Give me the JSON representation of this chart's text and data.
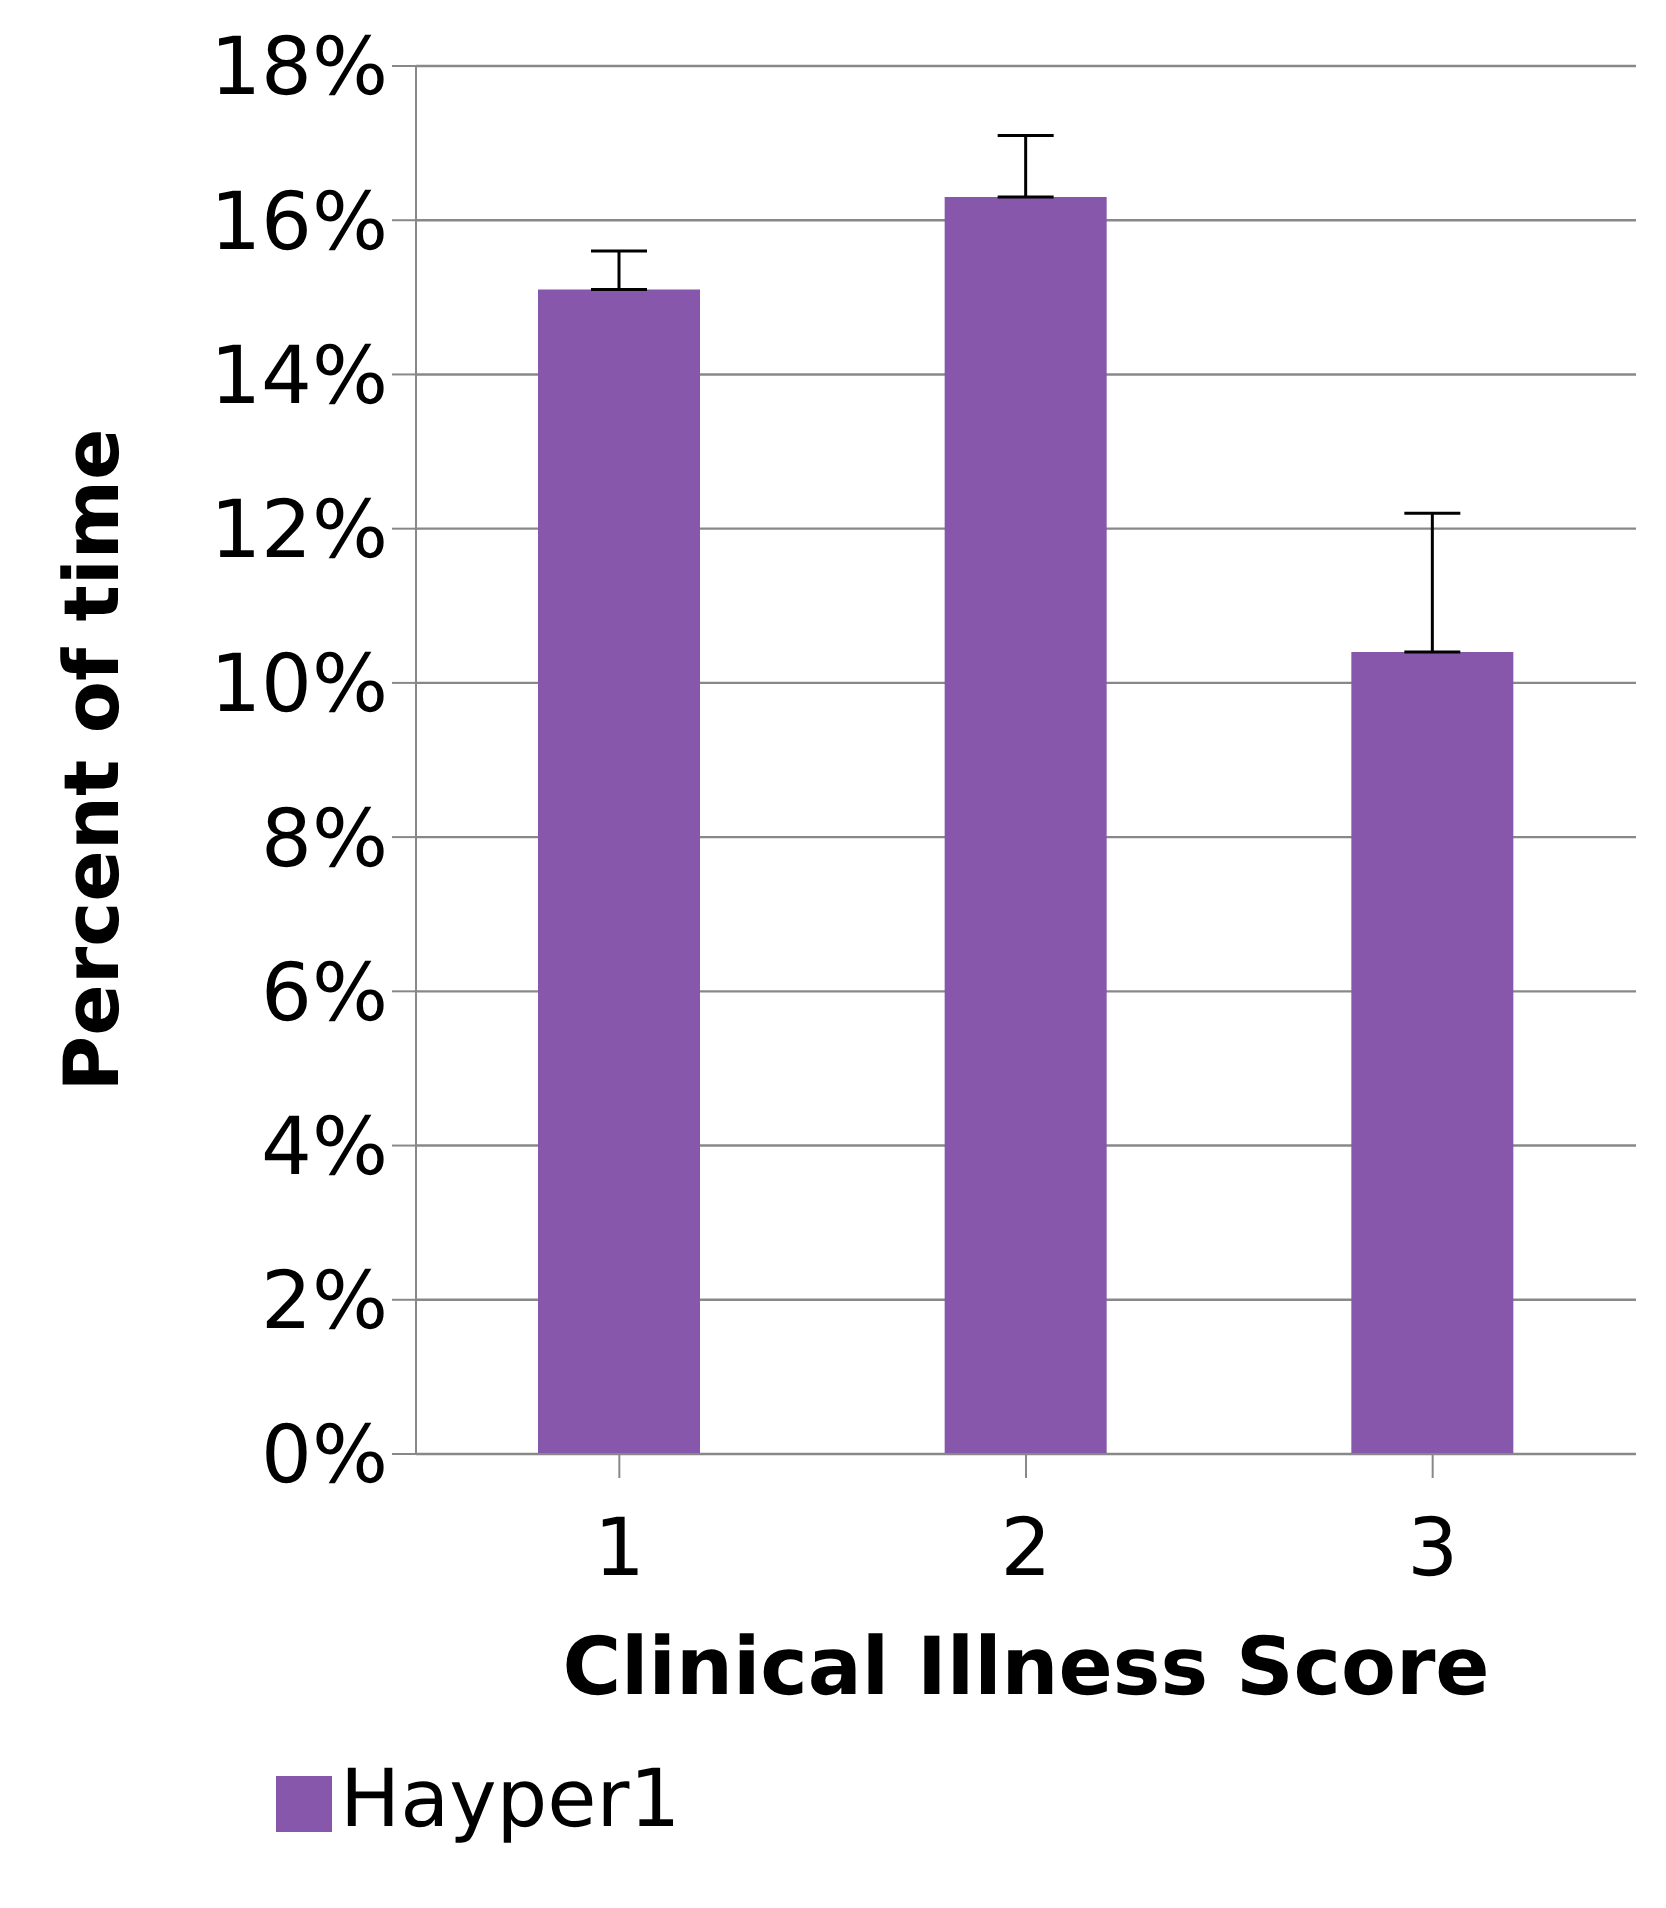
{
  "chart_data": {
    "type": "bar",
    "xlabel": "Clinical Illness Score",
    "ylabel": "Percent of time",
    "categories": [
      "1",
      "2",
      "3"
    ],
    "series": [
      {
        "name": "Hayper1",
        "color": "#8757ab",
        "values": [
          15.1,
          16.3,
          10.4
        ],
        "errors": [
          [
            15.1,
            15.6
          ],
          [
            16.3,
            17.1
          ],
          [
            10.4,
            12.2
          ]
        ]
      }
    ],
    "ylim": [
      0,
      18
    ],
    "yticks": [
      {
        "value": 0,
        "label": "0%"
      },
      {
        "value": 2,
        "label": "2%"
      },
      {
        "value": 4,
        "label": "4%"
      },
      {
        "value": 6,
        "label": "6%"
      },
      {
        "value": 8,
        "label": "8%"
      },
      {
        "value": 10,
        "label": "10%"
      },
      {
        "value": 12,
        "label": "12%"
      },
      {
        "value": 14,
        "label": "14%"
      },
      {
        "value": 16,
        "label": "16%"
      },
      {
        "value": 18,
        "label": "18%"
      }
    ],
    "grid": "y",
    "legend": "bottom left"
  }
}
